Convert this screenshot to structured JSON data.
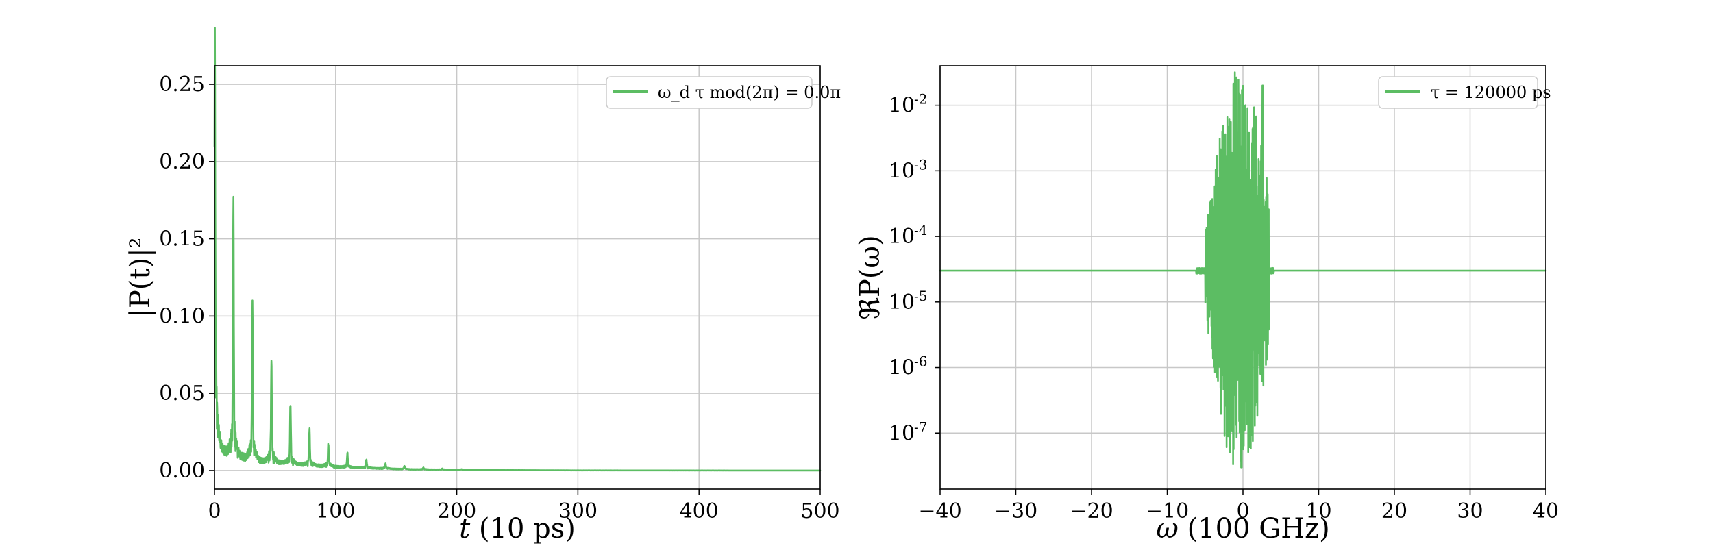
{
  "chart_data": [
    {
      "type": "line",
      "xlabel": "t (10 ps)",
      "ylabel": "|P(t)|²",
      "xlim": [
        0,
        500
      ],
      "ylim": [
        -0.012,
        0.262
      ],
      "x_ticks": [
        "0",
        "100",
        "200",
        "300",
        "400",
        "500"
      ],
      "x_tick_values": [
        0,
        100,
        200,
        300,
        400,
        500
      ],
      "y_ticks": [
        "0.00",
        "0.05",
        "0.10",
        "0.15",
        "0.20",
        "0.25"
      ],
      "y_tick_values": [
        0,
        0.05,
        0.1,
        0.15,
        0.2,
        0.25
      ],
      "grid": true,
      "legend_position": "top-right",
      "color": "#5cbd63",
      "series": [
        {
          "name": "ω_d τ mod(2π) = 0.0π",
          "peaks": [
            {
              "x": 0.3,
              "y": 0.26
            },
            {
              "x": 1.5,
              "y": 0.042
            },
            {
              "x": 15.6,
              "y": 0.161
            },
            {
              "x": 31.3,
              "y": 0.103
            },
            {
              "x": 47.0,
              "y": 0.066
            },
            {
              "x": 62.7,
              "y": 0.042
            },
            {
              "x": 78.4,
              "y": 0.026
            },
            {
              "x": 94.0,
              "y": 0.017
            },
            {
              "x": 109.7,
              "y": 0.011
            },
            {
              "x": 125.4,
              "y": 0.007
            },
            {
              "x": 141.1,
              "y": 0.0045
            },
            {
              "x": 156.8,
              "y": 0.003
            },
            {
              "x": 172.4,
              "y": 0.002
            },
            {
              "x": 188.1,
              "y": 0.0013
            },
            {
              "x": 203.8,
              "y": 0.0009
            }
          ],
          "baseline": [
            {
              "x": 0,
              "y": 0.022
            },
            {
              "x": 8,
              "y": 0.016
            },
            {
              "x": 20,
              "y": 0.012
            },
            {
              "x": 40,
              "y": 0.008
            },
            {
              "x": 70,
              "y": 0.005
            },
            {
              "x": 110,
              "y": 0.0025
            },
            {
              "x": 160,
              "y": 0.001
            },
            {
              "x": 220,
              "y": 0.0004
            },
            {
              "x": 300,
              "y": 0.0001
            },
            {
              "x": 500,
              "y": 0.0
            }
          ]
        }
      ]
    },
    {
      "type": "line",
      "xlabel": "ω (100 GHz)",
      "ylabel": "ℜP(ω)",
      "xlim": [
        -40,
        40
      ],
      "y_scale": "log",
      "ylim": [
        1.4e-08,
        0.04
      ],
      "x_ticks": [
        "−40",
        "−30",
        "−20",
        "−10",
        "0",
        "10",
        "20",
        "30",
        "40"
      ],
      "x_tick_values": [
        -40,
        -30,
        -20,
        -10,
        0,
        10,
        20,
        30,
        40
      ],
      "y_tick_mantissa": [
        "10",
        "10",
        "10",
        "10",
        "10",
        "10"
      ],
      "y_tick_exponents": [
        "-7",
        "-6",
        "-5",
        "-4",
        "-3",
        "-2"
      ],
      "y_tick_values": [
        1e-07,
        1e-06,
        1e-05,
        0.0001,
        0.001,
        0.01
      ],
      "grid": true,
      "legend_position": "top-right",
      "color": "#5cbd63",
      "series": [
        {
          "name": "τ = 120000 ps",
          "flat_level": 3e-05,
          "oscillation_range": [
            -5,
            3.5
          ],
          "min_dip": {
            "x": -0.2,
            "y": 3e-08
          },
          "max_peak": {
            "x": 2.6,
            "y": 0.02
          }
        }
      ]
    }
  ]
}
